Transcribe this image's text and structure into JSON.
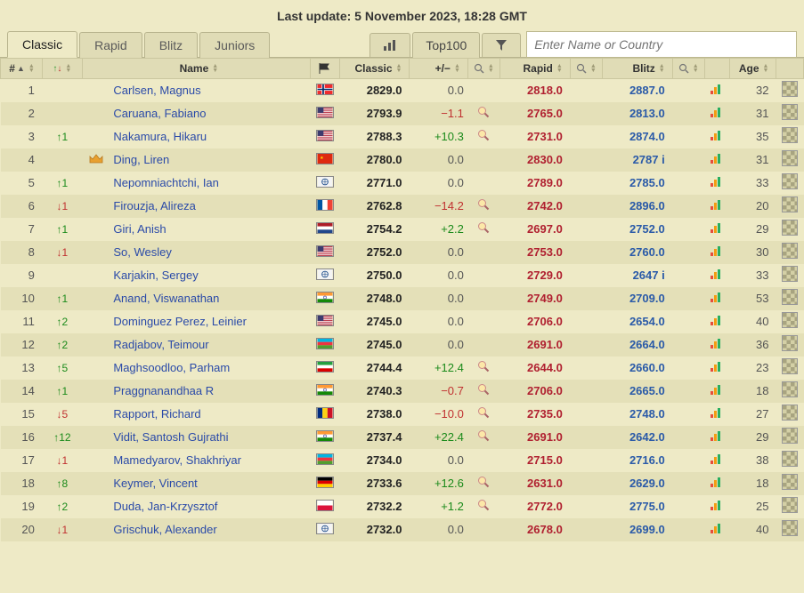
{
  "update_line": "Last update: 5 November 2023, 18:28 GMT",
  "tabs": {
    "classic": "Classic",
    "rapid": "Rapid",
    "blitz": "Blitz",
    "juniors": "Juniors",
    "top100": "Top100"
  },
  "search": {
    "placeholder": "Enter Name or Country"
  },
  "headers": {
    "rank": "#",
    "name": "Name",
    "classic": "Classic",
    "delta": "+/−",
    "rapid": "Rapid",
    "blitz": "Blitz",
    "age": "Age"
  },
  "flags": {
    "NOR": {
      "bg": "#ef2b2d",
      "stripes": [
        [
          "h",
          "#fff",
          0.36,
          0.28
        ],
        [
          "v",
          "#fff",
          0.28,
          0.2
        ],
        [
          "h",
          "#002868",
          0.43,
          0.14
        ],
        [
          "v",
          "#002868",
          0.33,
          0.1
        ]
      ]
    },
    "USA": {
      "bg": "#b22234",
      "stripesH": "#fff",
      "canton": "#3c3b6e"
    },
    "CHN": {
      "bg": "#de2910",
      "star": "#ffde00"
    },
    "FIDE": {
      "bg": "#f4f4f4",
      "globe": "#1a4a8a"
    },
    "FRA": {
      "v": [
        "#0055a4",
        "#ffffff",
        "#ef4135"
      ]
    },
    "NED": {
      "h": [
        "#ae1c28",
        "#ffffff",
        "#21468b"
      ]
    },
    "IND": {
      "h": [
        "#ff9933",
        "#ffffff",
        "#138808"
      ],
      "wheel": "#000080"
    },
    "AZE": {
      "h": [
        "#00b5e2",
        "#ef3340",
        "#509e2f"
      ]
    },
    "IRI": {
      "h": [
        "#239f40",
        "#ffffff",
        "#da0000"
      ]
    },
    "ROU": {
      "v": [
        "#002b7f",
        "#fcd116",
        "#ce1126"
      ]
    },
    "GER": {
      "h": [
        "#000000",
        "#dd0000",
        "#ffce00"
      ]
    },
    "POL": {
      "h": [
        "#ffffff",
        "#dc143c"
      ]
    },
    "RUS": {
      "h": [
        "#ffffff",
        "#0039a6",
        "#d52b1e"
      ]
    }
  },
  "rows": [
    {
      "rank": 1,
      "move": "",
      "crown": false,
      "name": "Carlsen, Magnus",
      "flag": "NOR",
      "classic": "2829.0",
      "delta": "0.0",
      "deltaMag": false,
      "rapid": "2818.0",
      "blitz": "2887.0",
      "age": 32
    },
    {
      "rank": 2,
      "move": "",
      "crown": false,
      "name": "Caruana, Fabiano",
      "flag": "USA",
      "classic": "2793.9",
      "delta": "−1.1",
      "deltaMag": true,
      "rapid": "2765.0",
      "blitz": "2813.0",
      "age": 31
    },
    {
      "rank": 3,
      "move": "↑1",
      "crown": false,
      "name": "Nakamura, Hikaru",
      "flag": "USA",
      "classic": "2788.3",
      "delta": "+10.3",
      "deltaMag": true,
      "rapid": "2731.0",
      "blitz": "2874.0",
      "age": 35
    },
    {
      "rank": 4,
      "move": "",
      "crown": true,
      "name": "Ding, Liren",
      "flag": "CHN",
      "classic": "2780.0",
      "delta": "0.0",
      "deltaMag": false,
      "rapid": "2830.0",
      "blitz": "2787 i",
      "age": 31
    },
    {
      "rank": 5,
      "move": "↑1",
      "crown": false,
      "name": "Nepomniachtchi, Ian",
      "flag": "FIDE",
      "classic": "2771.0",
      "delta": "0.0",
      "deltaMag": false,
      "rapid": "2789.0",
      "blitz": "2785.0",
      "age": 33
    },
    {
      "rank": 6,
      "move": "↓1",
      "crown": false,
      "name": "Firouzja, Alireza",
      "flag": "FRA",
      "classic": "2762.8",
      "delta": "−14.2",
      "deltaMag": true,
      "rapid": "2742.0",
      "blitz": "2896.0",
      "age": 20
    },
    {
      "rank": 7,
      "move": "↑1",
      "crown": false,
      "name": "Giri, Anish",
      "flag": "NED",
      "classic": "2754.2",
      "delta": "+2.2",
      "deltaMag": true,
      "rapid": "2697.0",
      "blitz": "2752.0",
      "age": 29
    },
    {
      "rank": 8,
      "move": "↓1",
      "crown": false,
      "name": "So, Wesley",
      "flag": "USA",
      "classic": "2752.0",
      "delta": "0.0",
      "deltaMag": false,
      "rapid": "2753.0",
      "blitz": "2760.0",
      "age": 30
    },
    {
      "rank": 9,
      "move": "",
      "crown": false,
      "name": "Karjakin, Sergey",
      "flag": "FIDE",
      "classic": "2750.0",
      "delta": "0.0",
      "deltaMag": false,
      "rapid": "2729.0",
      "blitz": "2647 i",
      "age": 33
    },
    {
      "rank": 10,
      "move": "↑1",
      "crown": false,
      "name": "Anand, Viswanathan",
      "flag": "IND",
      "classic": "2748.0",
      "delta": "0.0",
      "deltaMag": false,
      "rapid": "2749.0",
      "blitz": "2709.0",
      "age": 53
    },
    {
      "rank": 11,
      "move": "↑2",
      "crown": false,
      "name": "Dominguez Perez, Leinier",
      "flag": "USA",
      "classic": "2745.0",
      "delta": "0.0",
      "deltaMag": false,
      "rapid": "2706.0",
      "blitz": "2654.0",
      "age": 40
    },
    {
      "rank": 12,
      "move": "↑2",
      "crown": false,
      "name": "Radjabov, Teimour",
      "flag": "AZE",
      "classic": "2745.0",
      "delta": "0.0",
      "deltaMag": false,
      "rapid": "2691.0",
      "blitz": "2664.0",
      "age": 36
    },
    {
      "rank": 13,
      "move": "↑5",
      "crown": false,
      "name": "Maghsoodloo, Parham",
      "flag": "IRI",
      "classic": "2744.4",
      "delta": "+12.4",
      "deltaMag": true,
      "rapid": "2644.0",
      "blitz": "2660.0",
      "age": 23
    },
    {
      "rank": 14,
      "move": "↑1",
      "crown": false,
      "name": "Praggnanandhaa R",
      "flag": "IND",
      "classic": "2740.3",
      "delta": "−0.7",
      "deltaMag": true,
      "rapid": "2706.0",
      "blitz": "2665.0",
      "age": 18
    },
    {
      "rank": 15,
      "move": "↓5",
      "crown": false,
      "name": "Rapport, Richard",
      "flag": "ROU",
      "classic": "2738.0",
      "delta": "−10.0",
      "deltaMag": true,
      "rapid": "2735.0",
      "blitz": "2748.0",
      "age": 27
    },
    {
      "rank": 16,
      "move": "↑12",
      "crown": false,
      "name": "Vidit, Santosh Gujrathi",
      "flag": "IND",
      "classic": "2737.4",
      "delta": "+22.4",
      "deltaMag": true,
      "rapid": "2691.0",
      "blitz": "2642.0",
      "age": 29
    },
    {
      "rank": 17,
      "move": "↓1",
      "crown": false,
      "name": "Mamedyarov, Shakhriyar",
      "flag": "AZE",
      "classic": "2734.0",
      "delta": "0.0",
      "deltaMag": false,
      "rapid": "2715.0",
      "blitz": "2716.0",
      "age": 38
    },
    {
      "rank": 18,
      "move": "↑8",
      "crown": false,
      "name": "Keymer, Vincent",
      "flag": "GER",
      "classic": "2733.6",
      "delta": "+12.6",
      "deltaMag": true,
      "rapid": "2631.0",
      "blitz": "2629.0",
      "age": 18
    },
    {
      "rank": 19,
      "move": "↑2",
      "crown": false,
      "name": "Duda, Jan-Krzysztof",
      "flag": "POL",
      "classic": "2732.2",
      "delta": "+1.2",
      "deltaMag": true,
      "rapid": "2772.0",
      "blitz": "2775.0",
      "age": 25
    },
    {
      "rank": 20,
      "move": "↓1",
      "crown": false,
      "name": "Grischuk, Alexander",
      "flag": "FIDE",
      "classic": "2732.0",
      "delta": "0.0",
      "deltaMag": false,
      "rapid": "2678.0",
      "blitz": "2699.0",
      "age": 40
    }
  ]
}
